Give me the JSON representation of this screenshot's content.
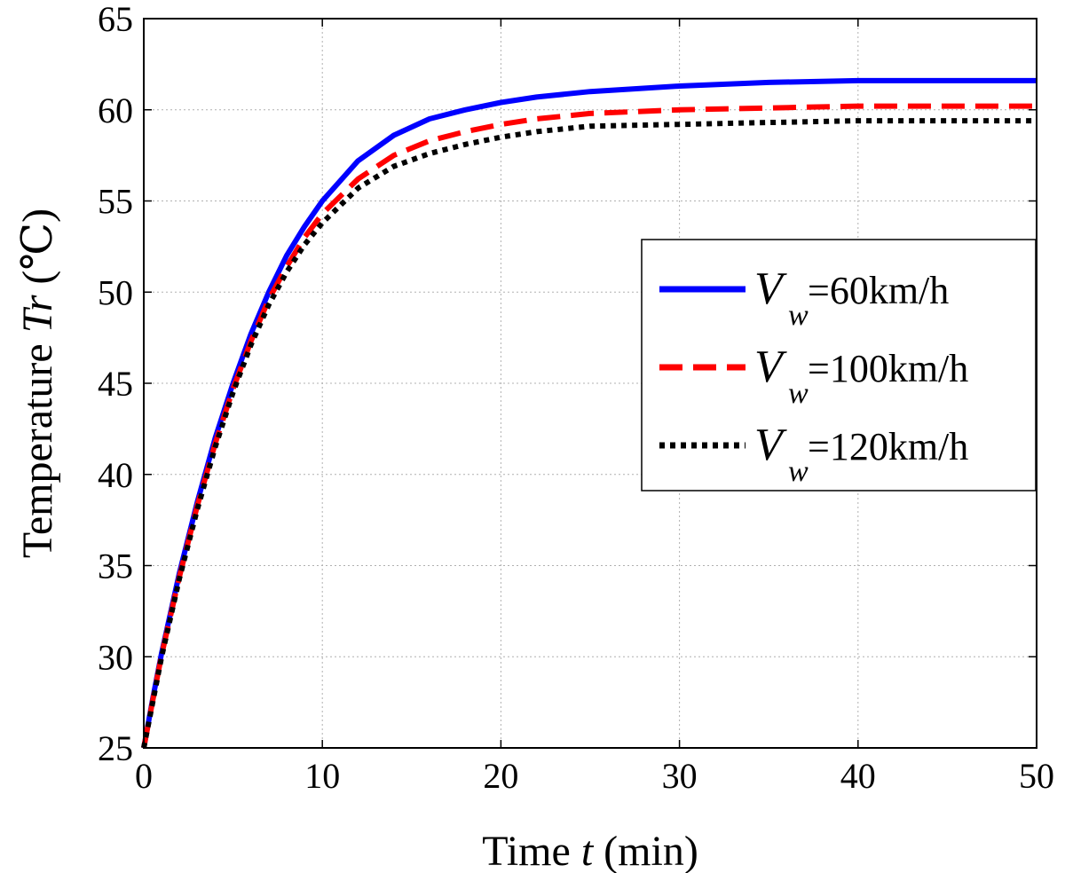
{
  "chart_data": {
    "type": "line",
    "xlabel": {
      "prefix": "Time ",
      "var": "t",
      "suffix": " (min)"
    },
    "ylabel": {
      "prefix": "Temperature ",
      "var": "Tr",
      "suffix": " (℃)"
    },
    "xlim": [
      0,
      50
    ],
    "ylim": [
      25,
      65
    ],
    "xticks": [
      0,
      10,
      20,
      30,
      40,
      50
    ],
    "yticks": [
      25,
      30,
      35,
      40,
      45,
      50,
      55,
      60,
      65
    ],
    "grid": true,
    "legend_position": "right-middle",
    "x": [
      0,
      0.5,
      1,
      2,
      3,
      4,
      5,
      6,
      7,
      8,
      9,
      10,
      12,
      14,
      16,
      18,
      20,
      22,
      25,
      30,
      35,
      40,
      45,
      50
    ],
    "series": [
      {
        "symbol": "V",
        "subscript": "w",
        "label": " =60km/h",
        "color": "#0000ff",
        "style": "solid",
        "values": [
          25.0,
          27.7,
          30.2,
          34.6,
          38.5,
          42.0,
          45.0,
          47.7,
          50.0,
          52.0,
          53.6,
          55.0,
          57.2,
          58.6,
          59.5,
          60.0,
          60.4,
          60.7,
          61.0,
          61.3,
          61.5,
          61.6,
          61.6,
          61.6
        ]
      },
      {
        "symbol": "V",
        "subscript": "w",
        "label": " =100km/h",
        "color": "#ff0000",
        "style": "dashed",
        "values": [
          25.0,
          27.6,
          30.1,
          34.4,
          38.3,
          41.7,
          44.7,
          47.3,
          49.6,
          51.4,
          53.0,
          54.3,
          56.2,
          57.5,
          58.3,
          58.8,
          59.2,
          59.5,
          59.8,
          60.0,
          60.1,
          60.2,
          60.2,
          60.2
        ]
      },
      {
        "symbol": "V",
        "subscript": "w",
        "label": " =120km/h",
        "color": "#000000",
        "style": "dotted",
        "values": [
          25.0,
          27.5,
          30.0,
          34.3,
          38.1,
          41.5,
          44.5,
          47.1,
          49.3,
          51.1,
          52.6,
          53.8,
          55.7,
          56.9,
          57.6,
          58.1,
          58.5,
          58.8,
          59.1,
          59.2,
          59.3,
          59.4,
          59.4,
          59.4
        ]
      }
    ]
  }
}
